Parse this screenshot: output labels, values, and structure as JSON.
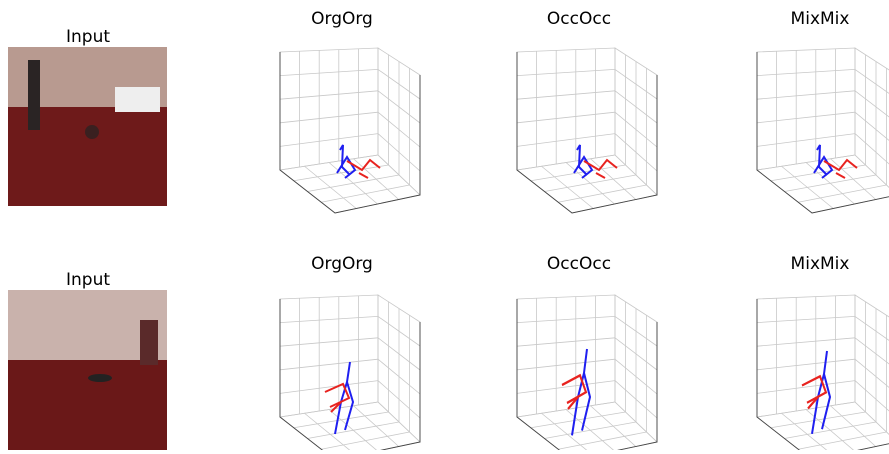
{
  "rows": [
    {
      "input_label": "Input",
      "panels": [
        {
          "title": "OrgOrg"
        },
        {
          "title": "OccOcc"
        },
        {
          "title": "MixMix"
        }
      ]
    },
    {
      "input_label": "Input",
      "panels": [
        {
          "title": "OrgOrg"
        },
        {
          "title": "OccOcc"
        },
        {
          "title": "MixMix"
        }
      ]
    }
  ]
}
